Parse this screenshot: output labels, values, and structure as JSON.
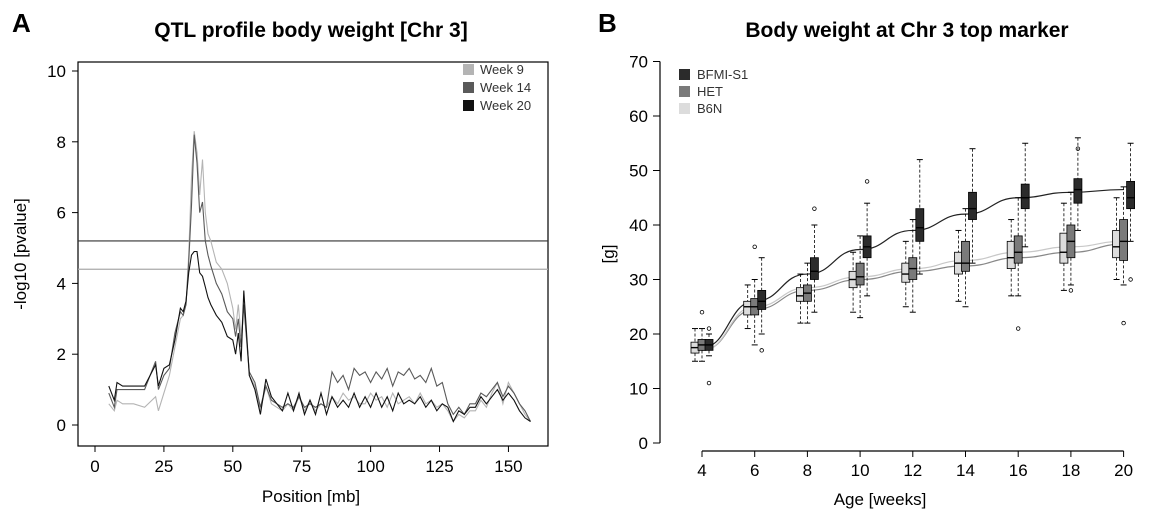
{
  "panels": {
    "a": {
      "letter": "A",
      "title": "QTL profile body weight  [Chr 3]",
      "xlabel": "Position [mb]",
      "ylabel": "-log10 [pvalue]"
    },
    "b": {
      "letter": "B",
      "title": "Body weight at Chr 3 top marker",
      "xlabel": "Age [weeks]",
      "ylabel": "[g]"
    }
  },
  "chart_data": [
    {
      "type": "line",
      "title": "QTL profile body weight  [Chr 3]",
      "xlabel": "Position [mb]",
      "ylabel": "-log10 [pvalue]",
      "xlim": [
        0,
        160
      ],
      "ylim": [
        0,
        10
      ],
      "xticks": [
        0,
        25,
        50,
        75,
        100,
        125,
        150
      ],
      "yticks": [
        0,
        2,
        4,
        6,
        8,
        10
      ],
      "legend_position": "top-right",
      "thresholds": [
        {
          "y": 5.2,
          "color": "#333333"
        },
        {
          "y": 4.4,
          "color": "#aaaaaa"
        }
      ],
      "series": [
        {
          "name": "Week 9",
          "color": "#b4b4b4",
          "x": [
            5,
            7,
            8,
            10,
            14,
            18,
            22,
            23,
            25,
            27,
            29,
            31,
            32,
            33,
            34,
            35,
            36,
            37,
            38,
            39,
            40,
            41,
            42,
            44,
            46,
            48,
            50,
            51,
            52,
            53,
            54,
            56,
            58,
            60,
            62,
            64,
            66,
            68,
            70,
            72,
            74,
            76,
            78,
            80,
            82,
            84,
            86,
            88,
            90,
            92,
            94,
            96,
            98,
            100,
            102,
            104,
            106,
            108,
            110,
            112,
            114,
            116,
            118,
            120,
            122,
            124,
            126,
            128,
            130,
            132,
            134,
            136,
            138,
            140,
            142,
            144,
            146,
            148,
            150,
            152,
            154,
            156,
            158
          ],
          "y": [
            0.6,
            0.4,
            0.7,
            0.6,
            0.6,
            0.5,
            0.8,
            0.4,
            0.9,
            1.4,
            2.2,
            3.0,
            3.1,
            3.4,
            4.8,
            7.0,
            8.3,
            7.7,
            6.5,
            7.5,
            6.0,
            5.4,
            5.2,
            4.6,
            4.4,
            4.0,
            3.3,
            2.7,
            3.4,
            2.5,
            3.4,
            1.4,
            1.1,
            0.4,
            1.1,
            0.6,
            0.5,
            0.4,
            0.6,
            0.4,
            0.8,
            0.4,
            0.7,
            0.4,
            0.6,
            0.5,
            0.8,
            0.6,
            0.9,
            0.7,
            0.8,
            0.6,
            0.6,
            0.9,
            0.7,
            0.8,
            0.5,
            0.9,
            0.6,
            0.7,
            0.8,
            0.6,
            0.9,
            0.6,
            0.7,
            0.5,
            0.6,
            0.4,
            0.1,
            0.3,
            0.2,
            0.4,
            0.4,
            0.7,
            0.5,
            0.9,
            1.2,
            0.6,
            1.2,
            0.9,
            0.6,
            0.3,
            0.1
          ]
        },
        {
          "name": "Week 14",
          "color": "#5a5a5a",
          "x": [
            5,
            7,
            8,
            10,
            14,
            18,
            22,
            23,
            25,
            27,
            29,
            31,
            32,
            33,
            34,
            35,
            36,
            37,
            38,
            39,
            40,
            41,
            42,
            44,
            46,
            48,
            50,
            51,
            52,
            53,
            54,
            56,
            58,
            60,
            62,
            64,
            66,
            68,
            70,
            72,
            74,
            76,
            78,
            80,
            82,
            84,
            86,
            88,
            90,
            92,
            94,
            96,
            98,
            100,
            102,
            104,
            106,
            108,
            110,
            112,
            114,
            116,
            118,
            120,
            122,
            124,
            126,
            128,
            130,
            132,
            134,
            136,
            138,
            140,
            142,
            144,
            146,
            148,
            150,
            152,
            154,
            156,
            158
          ],
          "y": [
            0.9,
            0.5,
            1.0,
            1.0,
            1.0,
            1.0,
            1.8,
            1.0,
            1.4,
            1.6,
            2.6,
            3.2,
            3.1,
            3.4,
            4.6,
            6.2,
            8.2,
            7.4,
            6.0,
            6.3,
            5.2,
            4.8,
            4.5,
            4.0,
            3.7,
            3.2,
            3.0,
            2.5,
            3.0,
            2.2,
            3.4,
            1.5,
            1.2,
            0.5,
            1.1,
            0.7,
            0.6,
            0.5,
            0.6,
            0.5,
            0.8,
            0.5,
            0.6,
            0.5,
            0.6,
            0.5,
            1.5,
            1.2,
            1.4,
            1.0,
            1.6,
            1.4,
            1.5,
            1.2,
            1.5,
            1.3,
            1.6,
            1.1,
            1.5,
            1.4,
            1.6,
            1.3,
            1.4,
            1.2,
            1.6,
            1.1,
            1.2,
            0.6,
            0.3,
            0.5,
            0.3,
            0.6,
            0.6,
            0.9,
            0.8,
            1.0,
            1.2,
            0.8,
            1.1,
            0.9,
            0.6,
            0.4,
            0.1
          ]
        },
        {
          "name": "Week 20",
          "color": "#111111",
          "x": [
            5,
            7,
            8,
            10,
            14,
            18,
            22,
            23,
            25,
            27,
            29,
            31,
            32,
            33,
            34,
            35,
            36,
            37,
            38,
            39,
            40,
            41,
            42,
            44,
            46,
            48,
            50,
            51,
            52,
            53,
            54,
            56,
            58,
            60,
            62,
            64,
            66,
            68,
            70,
            72,
            74,
            76,
            78,
            80,
            82,
            84,
            86,
            88,
            90,
            92,
            94,
            96,
            98,
            100,
            102,
            104,
            106,
            108,
            110,
            112,
            114,
            116,
            118,
            120,
            122,
            124,
            126,
            128,
            130,
            132,
            134,
            136,
            138,
            140,
            142,
            144,
            146,
            148,
            150,
            152,
            154,
            156,
            158
          ],
          "y": [
            1.1,
            0.7,
            1.2,
            1.1,
            1.1,
            1.1,
            1.7,
            1.1,
            1.6,
            1.7,
            2.4,
            3.3,
            3.2,
            3.5,
            4.3,
            4.8,
            4.9,
            4.9,
            4.3,
            4.2,
            3.9,
            3.6,
            3.4,
            3.1,
            2.9,
            2.5,
            2.4,
            2.0,
            2.6,
            1.8,
            3.8,
            1.4,
            1.0,
            0.3,
            1.3,
            0.8,
            0.6,
            0.4,
            0.9,
            0.4,
            0.9,
            0.3,
            0.7,
            0.3,
            0.9,
            0.3,
            0.8,
            0.5,
            0.7,
            0.5,
            0.9,
            0.5,
            0.8,
            0.5,
            0.9,
            0.5,
            0.8,
            0.4,
            0.9,
            0.6,
            0.7,
            0.6,
            0.8,
            0.5,
            0.7,
            0.4,
            0.6,
            0.5,
            0.1,
            0.4,
            0.3,
            0.5,
            0.5,
            0.8,
            0.6,
            0.8,
            1.0,
            0.7,
            0.9,
            0.7,
            0.4,
            0.2,
            0.1
          ]
        }
      ]
    },
    {
      "type": "box",
      "title": "Body weight at Chr 3 top marker",
      "xlabel": "Age [weeks]",
      "ylabel": "[g]",
      "categories": [
        4,
        6,
        8,
        10,
        12,
        14,
        16,
        18,
        20
      ],
      "ylim": [
        0,
        70
      ],
      "yticks": [
        0,
        10,
        20,
        30,
        40,
        50,
        60,
        70
      ],
      "legend_position": "top-left",
      "series": [
        {
          "name": "BFMI-S1",
          "color": "#2b2b2b",
          "box": [
            {
              "min": 16,
              "q1": 17,
              "median": 18,
              "q3": 19,
              "max": 20,
              "outliers": [
                11,
                21
              ]
            },
            {
              "min": 20,
              "q1": 24.5,
              "median": 26,
              "q3": 28,
              "max": 34,
              "outliers": [
                17
              ]
            },
            {
              "min": 24,
              "q1": 30,
              "median": 31.5,
              "q3": 34,
              "max": 40,
              "outliers": [
                43
              ]
            },
            {
              "min": 27,
              "q1": 34,
              "median": 36,
              "q3": 38,
              "max": 44,
              "outliers": [
                48
              ]
            },
            {
              "min": 31,
              "q1": 37,
              "median": 39.5,
              "q3": 43,
              "max": 52,
              "outliers": []
            },
            {
              "min": 33,
              "q1": 41,
              "median": 43,
              "q3": 46,
              "max": 54,
              "outliers": []
            },
            {
              "min": 36,
              "q1": 43,
              "median": 45,
              "q3": 47.5,
              "max": 55,
              "outliers": []
            },
            {
              "min": 39,
              "q1": 44,
              "median": 46.5,
              "q3": 48.5,
              "max": 56,
              "outliers": [
                54
              ]
            },
            {
              "min": 37,
              "q1": 43,
              "median": 45,
              "q3": 48,
              "max": 55,
              "outliers": [
                30
              ]
            }
          ],
          "trend": [
            17.5,
            26,
            31,
            35.5,
            39,
            42,
            45,
            46,
            46.5
          ]
        },
        {
          "name": "HET",
          "color": "#7a7a7a",
          "box": [
            {
              "min": 15,
              "q1": 17,
              "median": 18,
              "q3": 19,
              "max": 21,
              "outliers": [
                24
              ]
            },
            {
              "min": 18,
              "q1": 23.5,
              "median": 25,
              "q3": 26.5,
              "max": 30,
              "outliers": [
                36
              ]
            },
            {
              "min": 22,
              "q1": 26,
              "median": 27.5,
              "q3": 29,
              "max": 33,
              "outliers": []
            },
            {
              "min": 23,
              "q1": 29,
              "median": 30.5,
              "q3": 33,
              "max": 38,
              "outliers": []
            },
            {
              "min": 24,
              "q1": 30,
              "median": 32,
              "q3": 34,
              "max": 41,
              "outliers": []
            },
            {
              "min": 25,
              "q1": 31.5,
              "median": 33,
              "q3": 37,
              "max": 43,
              "outliers": []
            },
            {
              "min": 27,
              "q1": 33,
              "median": 35,
              "q3": 38,
              "max": 45,
              "outliers": [
                21
              ]
            },
            {
              "min": 29,
              "q1": 34,
              "median": 37,
              "q3": 40,
              "max": 46,
              "outliers": [
                28
              ]
            },
            {
              "min": 29,
              "q1": 33.5,
              "median": 37,
              "q3": 41,
              "max": 47,
              "outliers": [
                22
              ]
            }
          ],
          "trend": [
            17,
            24.5,
            28,
            30,
            31.5,
            32.5,
            34,
            35,
            36.5
          ]
        },
        {
          "name": "B6N",
          "color": "#dcdcdc",
          "box": [
            {
              "min": 15,
              "q1": 16.5,
              "median": 17.5,
              "q3": 18.5,
              "max": 21,
              "outliers": []
            },
            {
              "min": 21,
              "q1": 23.5,
              "median": 25,
              "q3": 26,
              "max": 29,
              "outliers": []
            },
            {
              "min": 22,
              "q1": 26,
              "median": 27,
              "q3": 28.5,
              "max": 31,
              "outliers": []
            },
            {
              "min": 24,
              "q1": 28.5,
              "median": 30,
              "q3": 31.5,
              "max": 35,
              "outliers": []
            },
            {
              "min": 25,
              "q1": 29.5,
              "median": 31,
              "q3": 33,
              "max": 37,
              "outliers": []
            },
            {
              "min": 26,
              "q1": 31,
              "median": 33,
              "q3": 35,
              "max": 39,
              "outliers": []
            },
            {
              "min": 27,
              "q1": 32,
              "median": 34,
              "q3": 37,
              "max": 41,
              "outliers": []
            },
            {
              "min": 28,
              "q1": 33,
              "median": 35,
              "q3": 38.5,
              "max": 44,
              "outliers": []
            },
            {
              "min": 30,
              "q1": 34,
              "median": 36,
              "q3": 39,
              "max": 45,
              "outliers": []
            }
          ],
          "trend": [
            17,
            25,
            28.5,
            30.5,
            32,
            33.5,
            35,
            36,
            37
          ]
        }
      ]
    }
  ]
}
